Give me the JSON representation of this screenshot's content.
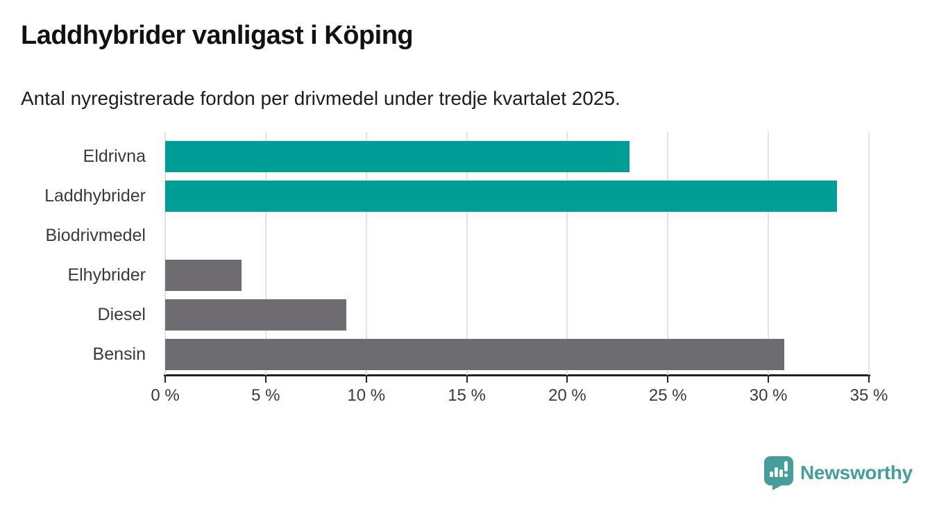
{
  "header": {
    "title": "Laddhybrider vanligast i Köping",
    "subtitle": "Antal nyregistrerade fordon per drivmedel under tredje kvartalet 2025."
  },
  "chart_data": {
    "type": "bar",
    "orientation": "horizontal",
    "title": "Laddhybrider vanligast i Köping",
    "subtitle": "Antal nyregistrerade fordon per drivmedel under tredje kvartalet 2025.",
    "categories": [
      "Eldrivna",
      "Laddhybrider",
      "Biodrivmedel",
      "Elhybrider",
      "Diesel",
      "Bensin"
    ],
    "values": [
      23.1,
      33.4,
      0,
      3.8,
      9.0,
      30.8
    ],
    "unit": "%",
    "bar_colors": [
      "#009E96",
      "#009E96",
      "#6E6C71",
      "#6E6C71",
      "#6E6C71",
      "#6E6C71"
    ],
    "xlabel": "",
    "ylabel": "",
    "xlim": [
      0,
      35
    ],
    "x_ticks": [
      0,
      5,
      10,
      15,
      20,
      25,
      30,
      35
    ],
    "x_tick_labels": [
      "0 %",
      "5 %",
      "10 %",
      "15 %",
      "20 %",
      "25 %",
      "30 %",
      "35 %"
    ],
    "grid": "vertical",
    "legend": "none"
  },
  "colors": {
    "highlight": "#009E96",
    "neutral": "#6E6C71",
    "gridline": "#E3E3E3",
    "axis": "#222222",
    "label_text": "#3A3A3A"
  },
  "branding": {
    "logo_text": "Newsworthy",
    "logo_color": "#459E9C",
    "logo_icon": "bar-chart-speech-bubble-icon"
  }
}
